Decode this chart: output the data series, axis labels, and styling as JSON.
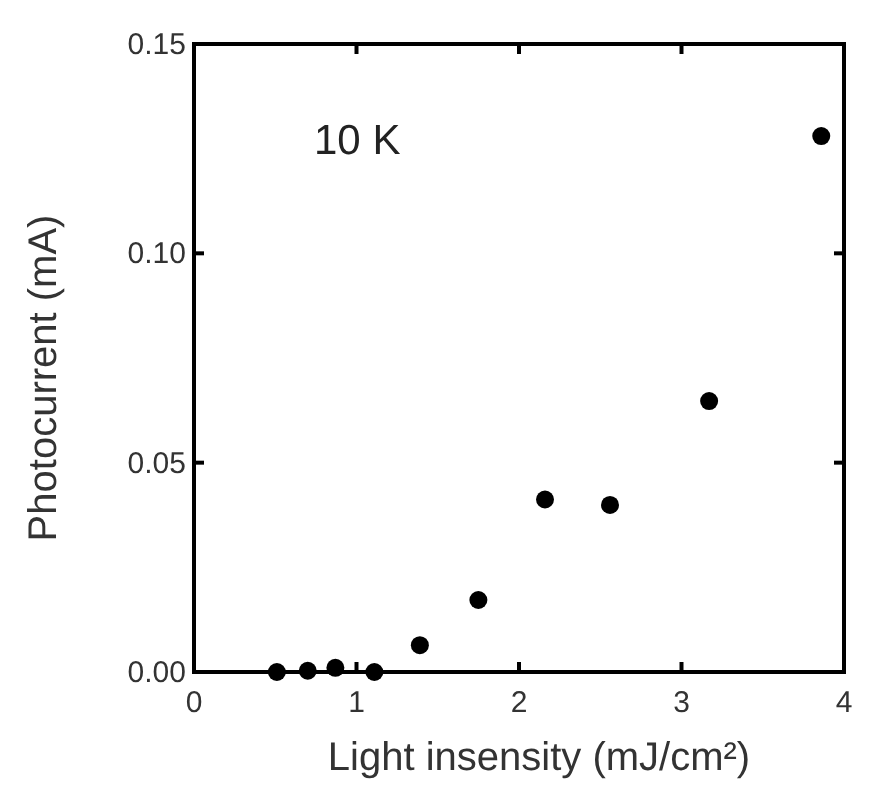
{
  "chart_data": {
    "type": "scatter",
    "xlabel": "Light insensity (mJ/cm²)",
    "ylabel": "Photocurrent (mA)",
    "annotations": [
      "10 K"
    ],
    "x": [
      0.51,
      0.7,
      0.87,
      1.11,
      1.39,
      1.75,
      2.16,
      2.56,
      3.17,
      3.86
    ],
    "series": [
      {
        "color": "#000000",
        "values": [
          0,
          0.0003,
          0.001,
          0,
          0.0064,
          0.0172,
          0.0412,
          0.0399,
          0.0647,
          0.128
        ]
      }
    ],
    "xlim": [
      0,
      4
    ],
    "xticks": [
      0,
      1,
      2,
      3,
      4
    ],
    "ylim": [
      0,
      0.15
    ],
    "yticks": [
      {
        "value": 0,
        "label": "0.00"
      },
      {
        "value": 0.05,
        "label": "0.05"
      },
      {
        "value": 0.1,
        "label": "0.10"
      },
      {
        "value": 0.15,
        "label": "0.15"
      }
    ],
    "marker": "circle",
    "grid": false
  }
}
